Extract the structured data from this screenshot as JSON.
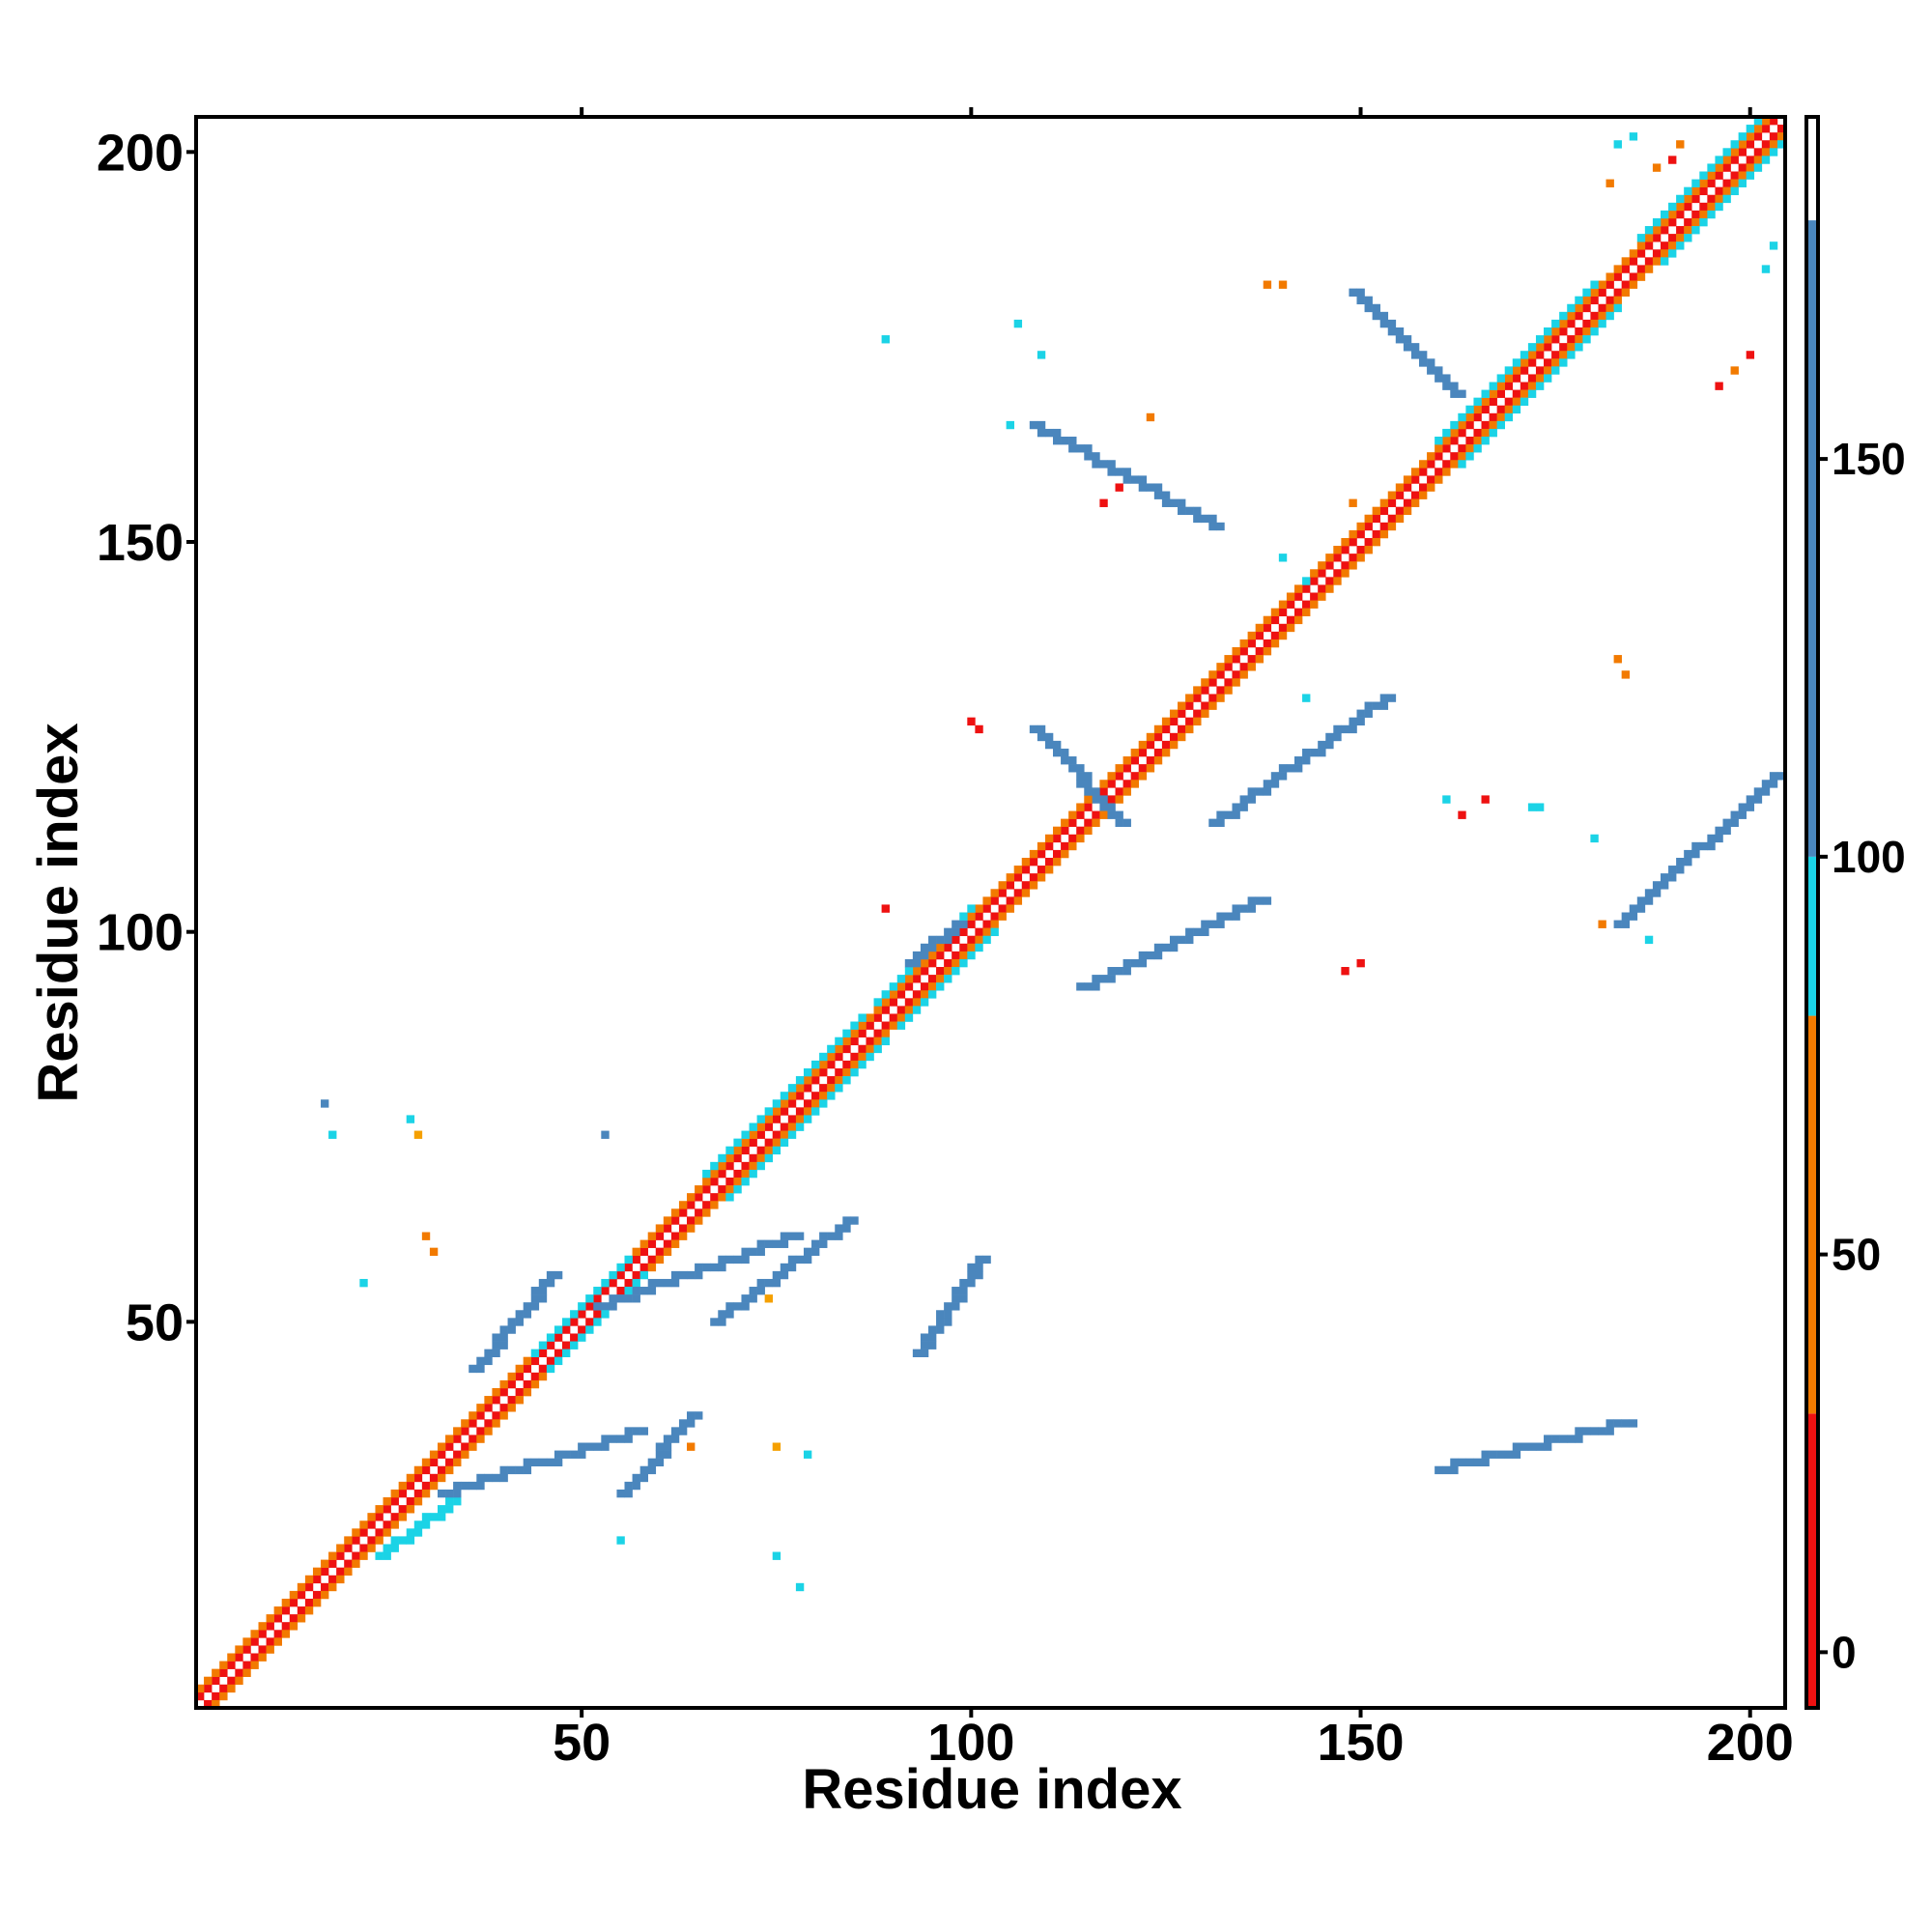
{
  "chart_data": {
    "type": "heatmap",
    "title": "",
    "xlabel": "Residue index",
    "ylabel": "Residue index",
    "xlim": [
      0.5,
      204.5
    ],
    "ylim": [
      0.5,
      204.5
    ],
    "x_ticks": [
      50,
      100,
      150,
      200
    ],
    "y_ticks": [
      50,
      100,
      150,
      200
    ],
    "x_tick_labels": [
      "50",
      "100",
      "150",
      "200"
    ],
    "y_tick_labels": [
      "50",
      "100",
      "150",
      "200"
    ],
    "colorbar": {
      "range": [
        -7,
        193
      ],
      "ticks": [
        0,
        50,
        100,
        150
      ],
      "tick_labels": [
        "0",
        "50",
        "100",
        "150"
      ],
      "bands": [
        {
          "from": -7,
          "to": 30,
          "color": "#ee1111"
        },
        {
          "from": 30,
          "to": 80,
          "color": "#f27a00"
        },
        {
          "from": 80,
          "to": 100,
          "color": "#1bd3e6"
        },
        {
          "from": 100,
          "to": 180,
          "color": "#4a86bd"
        },
        {
          "from": 180,
          "to": 193,
          "color": "#ffffff"
        }
      ]
    },
    "colors": {
      "red": "#ee1111",
      "orange": "#f27a00",
      "amber": "#f5a000",
      "cyan": "#1bd3e6",
      "steel": "#4a86bd"
    },
    "diagonal_bands": [
      {
        "from": 1,
        "to": 204,
        "offset": 1,
        "color": "red"
      },
      {
        "from": 1,
        "to": 204,
        "offset": 2,
        "color": "orange"
      },
      {
        "from": 44,
        "to": 56,
        "offset": 2,
        "color": "cyan"
      },
      {
        "from": 66,
        "to": 86,
        "offset": 3,
        "color": "cyan"
      },
      {
        "from": 88,
        "to": 100,
        "offset": 3,
        "color": "cyan"
      },
      {
        "from": 160,
        "to": 180,
        "offset": 3,
        "color": "cyan"
      },
      {
        "from": 186,
        "to": 202,
        "offset": 3,
        "color": "cyan"
      },
      {
        "from": 48,
        "to": 58,
        "offset": 1,
        "color": "red"
      }
    ],
    "contact_segments": [
      {
        "start": [
          55,
          28
        ],
        "end": [
          64,
          38
        ],
        "width": 2,
        "color": "steel"
      },
      {
        "start": [
          36,
          44
        ],
        "end": [
          46,
          56
        ],
        "width": 2,
        "color": "steel"
      },
      {
        "start": [
          67,
          50
        ],
        "end": [
          84,
          63
        ],
        "width": 2,
        "color": "steel"
      },
      {
        "start": [
          24,
          20
        ],
        "end": [
          33,
          27
        ],
        "width": 2,
        "color": "cyan"
      },
      {
        "start": [
          32,
          28
        ],
        "end": [
          57,
          36
        ],
        "width": 2,
        "color": "steel"
      },
      {
        "start": [
          52,
          52
        ],
        "end": [
          77,
          61
        ],
        "width": 2,
        "color": "steel"
      },
      {
        "start": [
          114,
          93
        ],
        "end": [
          137,
          104
        ],
        "width": 2,
        "color": "steel"
      },
      {
        "start": [
          160,
          31
        ],
        "end": [
          184,
          37
        ],
        "width": 2,
        "color": "steel"
      },
      {
        "start": [
          183,
          101
        ],
        "end": [
          203,
          120
        ],
        "width": 2,
        "color": "steel"
      },
      {
        "start": [
          93,
          46
        ],
        "end": [
          101,
          58
        ],
        "width": 2,
        "color": "steel"
      },
      {
        "start": [
          92,
          96
        ],
        "end": [
          98,
          101
        ],
        "width": 2,
        "color": "steel"
      },
      {
        "start": [
          131,
          114
        ],
        "end": [
          153,
          130
        ],
        "width": 2,
        "color": "steel"
      },
      {
        "start": [
          119,
          114
        ],
        "end": [
          108,
          126
        ],
        "width": 2,
        "color": "steel"
      },
      {
        "start": [
          131,
          152
        ],
        "end": [
          108,
          165
        ],
        "width": 2,
        "color": "steel"
      },
      {
        "start": [
          162,
          169
        ],
        "end": [
          149,
          182
        ],
        "width": 2,
        "color": "steel"
      }
    ],
    "contact_points": [
      {
        "x": 17,
        "y": 78,
        "color": "steel"
      },
      {
        "x": 18,
        "y": 74,
        "color": "cyan"
      },
      {
        "x": 28,
        "y": 76,
        "color": "cyan"
      },
      {
        "x": 29,
        "y": 74,
        "color": "amber"
      },
      {
        "x": 30,
        "y": 61,
        "color": "orange"
      },
      {
        "x": 31,
        "y": 59,
        "color": "orange"
      },
      {
        "x": 22,
        "y": 55,
        "color": "cyan"
      },
      {
        "x": 53,
        "y": 74,
        "color": "steel"
      },
      {
        "x": 74,
        "y": 53,
        "color": "amber"
      },
      {
        "x": 75,
        "y": 34,
        "color": "amber"
      },
      {
        "x": 64,
        "y": 34,
        "color": "orange"
      },
      {
        "x": 79,
        "y": 33,
        "color": "cyan"
      },
      {
        "x": 75,
        "y": 20,
        "color": "cyan"
      },
      {
        "x": 78,
        "y": 16,
        "color": "cyan"
      },
      {
        "x": 55,
        "y": 22,
        "color": "cyan"
      },
      {
        "x": 89,
        "y": 103,
        "color": "red"
      },
      {
        "x": 101,
        "y": 126,
        "color": "red"
      },
      {
        "x": 100,
        "y": 127,
        "color": "red"
      },
      {
        "x": 143,
        "y": 130,
        "color": "cyan"
      },
      {
        "x": 143,
        "y": 145,
        "color": "cyan"
      },
      {
        "x": 140,
        "y": 148,
        "color": "cyan"
      },
      {
        "x": 161,
        "y": 117,
        "color": "cyan"
      },
      {
        "x": 173,
        "y": 116,
        "color": "cyan"
      },
      {
        "x": 172,
        "y": 116,
        "color": "cyan"
      },
      {
        "x": 180,
        "y": 112,
        "color": "cyan"
      },
      {
        "x": 181,
        "y": 101,
        "color": "orange"
      },
      {
        "x": 184,
        "y": 133,
        "color": "orange"
      },
      {
        "x": 183,
        "y": 135,
        "color": "orange"
      },
      {
        "x": 187,
        "y": 99,
        "color": "cyan"
      },
      {
        "x": 163,
        "y": 115,
        "color": "red"
      },
      {
        "x": 166,
        "y": 117,
        "color": "red"
      },
      {
        "x": 148,
        "y": 95,
        "color": "red"
      },
      {
        "x": 150,
        "y": 96,
        "color": "red"
      },
      {
        "x": 140,
        "y": 183,
        "color": "orange"
      },
      {
        "x": 138,
        "y": 183,
        "color": "orange"
      },
      {
        "x": 106,
        "y": 178,
        "color": "cyan"
      },
      {
        "x": 89,
        "y": 176,
        "color": "cyan"
      },
      {
        "x": 109,
        "y": 174,
        "color": "cyan"
      },
      {
        "x": 105,
        "y": 165,
        "color": "cyan"
      },
      {
        "x": 117,
        "y": 155,
        "color": "red"
      },
      {
        "x": 119,
        "y": 157,
        "color": "red"
      },
      {
        "x": 185,
        "y": 202,
        "color": "cyan"
      },
      {
        "x": 183,
        "y": 201,
        "color": "cyan"
      },
      {
        "x": 188,
        "y": 198,
        "color": "orange"
      },
      {
        "x": 190,
        "y": 199,
        "color": "red"
      },
      {
        "x": 191,
        "y": 201,
        "color": "orange"
      },
      {
        "x": 196,
        "y": 170,
        "color": "red"
      },
      {
        "x": 198,
        "y": 172,
        "color": "orange"
      },
      {
        "x": 200,
        "y": 174,
        "color": "red"
      },
      {
        "x": 202,
        "y": 185,
        "color": "cyan"
      },
      {
        "x": 203,
        "y": 188,
        "color": "cyan"
      },
      {
        "x": 182,
        "y": 196,
        "color": "orange"
      },
      {
        "x": 149,
        "y": 155,
        "color": "orange"
      },
      {
        "x": 123,
        "y": 166,
        "color": "orange"
      }
    ]
  }
}
